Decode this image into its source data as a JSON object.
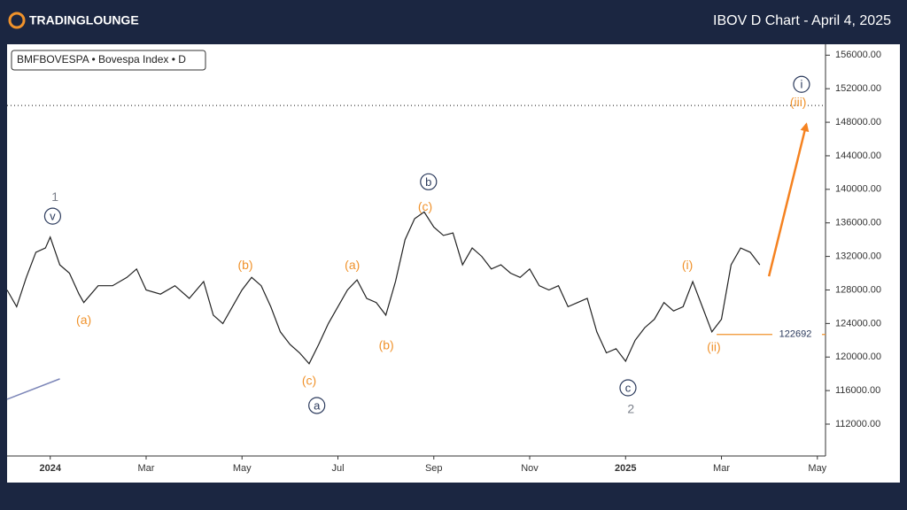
{
  "chart_data": {
    "type": "line",
    "brand": "TRADINGLOUNGE",
    "title": "IBOV D Chart - April 4, 2025",
    "legend_text": "BMFBOVESPA • Bovespa Index • D",
    "color": "#222222",
    "xlim": [
      -0.9,
      16.17
    ],
    "ylim": [
      108200,
      157300
    ],
    "xticks": [
      {
        "value": 0,
        "label": "2024"
      },
      {
        "value": 2,
        "label": "Mar"
      },
      {
        "value": 4,
        "label": "May"
      },
      {
        "value": 6,
        "label": "Jul"
      },
      {
        "value": 8,
        "label": "Sep"
      },
      {
        "value": 10,
        "label": "Nov"
      },
      {
        "value": 12,
        "label": "2025"
      },
      {
        "value": 14,
        "label": "Mar"
      },
      {
        "value": 16,
        "label": "May"
      }
    ],
    "yticks": [
      {
        "value": 156000,
        "label": "156000.00"
      },
      {
        "value": 152000,
        "label": "152000.00"
      },
      {
        "value": 148000,
        "label": "148000.00"
      },
      {
        "value": 144000,
        "label": "144000.00"
      },
      {
        "value": 140000,
        "label": "140000.00"
      },
      {
        "value": 136000,
        "label": "136000.00"
      },
      {
        "value": 132000,
        "label": "132000.00"
      },
      {
        "value": 128000,
        "label": "128000.00"
      },
      {
        "value": 124000,
        "label": "124000.00"
      },
      {
        "value": 120000,
        "label": "120000.00"
      },
      {
        "value": 116000,
        "label": "116000.00"
      },
      {
        "value": 112000,
        "label": "112000.00"
      }
    ],
    "x": [
      -0.9,
      -0.7,
      -0.5,
      -0.3,
      -0.1,
      0,
      0.2,
      0.4,
      0.6,
      0.7,
      1.0,
      1.3,
      1.6,
      1.8,
      2.0,
      2.3,
      2.6,
      2.9,
      3.2,
      3.4,
      3.6,
      3.8,
      4.0,
      4.2,
      4.4,
      4.6,
      4.8,
      5.0,
      5.2,
      5.4,
      5.6,
      5.8,
      6.0,
      6.2,
      6.4,
      6.6,
      6.8,
      7.0,
      7.2,
      7.4,
      7.6,
      7.8,
      8.0,
      8.2,
      8.4,
      8.6,
      8.8,
      9.0,
      9.2,
      9.4,
      9.6,
      9.8,
      10.0,
      10.2,
      10.4,
      10.6,
      10.8,
      11.0,
      11.2,
      11.4,
      11.6,
      11.8,
      12.0,
      12.2,
      12.4,
      12.6,
      12.8,
      13.0,
      13.2,
      13.4,
      13.6,
      13.8,
      14.0,
      14.2,
      14.4,
      14.6,
      14.8
    ],
    "values": [
      128000,
      126000,
      129500,
      132500,
      133000,
      134300,
      131000,
      130000,
      127500,
      126500,
      128500,
      128500,
      129500,
      130500,
      128000,
      127500,
      128500,
      127000,
      129000,
      125000,
      124000,
      126000,
      128000,
      129500,
      128500,
      126000,
      123000,
      121500,
      120500,
      119200,
      121500,
      124000,
      126000,
      128000,
      129200,
      127000,
      126500,
      125000,
      129000,
      134000,
      136500,
      137300,
      135500,
      134500,
      134800,
      131000,
      133000,
      132000,
      130500,
      131000,
      130000,
      129500,
      130500,
      128500,
      128000,
      128500,
      126000,
      126500,
      127000,
      123000,
      120500,
      121000,
      119500,
      122000,
      123500,
      124500,
      126500,
      125500,
      126000,
      129000,
      126000,
      123000,
      124500,
      131000,
      133000,
      132500,
      131000
    ],
    "annotations": [
      {
        "text": "1",
        "x": 0.1,
        "y": 139100,
        "color": "#7a7f8a"
      },
      {
        "text": "v",
        "x": 0.05,
        "y": 136800,
        "color": "#2b3a5c",
        "circled": true
      },
      {
        "text": "(a)",
        "x": 0.7,
        "y": 124450,
        "color": "#f0922b"
      },
      {
        "text": "(b)",
        "x": 4.07,
        "y": 131000,
        "color": "#f0922b"
      },
      {
        "text": "(c)",
        "x": 5.4,
        "y": 117180,
        "color": "#f0922b"
      },
      {
        "text": "a",
        "x": 5.56,
        "y": 114220,
        "color": "#2b3a5c",
        "circled": true
      },
      {
        "text": "(a)",
        "x": 6.3,
        "y": 131000,
        "color": "#f0922b"
      },
      {
        "text": "(b)",
        "x": 7.01,
        "y": 121400,
        "color": "#f0922b"
      },
      {
        "text": "(c)",
        "x": 7.82,
        "y": 137960,
        "color": "#f0922b"
      },
      {
        "text": "b",
        "x": 7.89,
        "y": 140900,
        "color": "#2b3a5c",
        "circled": true
      },
      {
        "text": "c",
        "x": 12.05,
        "y": 116330,
        "color": "#2b3a5c",
        "circled": true
      },
      {
        "text": "2",
        "x": 12.11,
        "y": 113800,
        "color": "#7a7f8a"
      },
      {
        "text": "(i)",
        "x": 13.29,
        "y": 131000,
        "color": "#f0922b"
      },
      {
        "text": "(ii)",
        "x": 13.84,
        "y": 121190,
        "color": "#f0922b"
      },
      {
        "text": "(iii)",
        "x": 15.6,
        "y": 150400,
        "color": "#f0922b"
      },
      {
        "text": "i",
        "x": 15.67,
        "y": 152520,
        "color": "#2b3a5c",
        "circled": true
      }
    ],
    "level": {
      "value": 122692,
      "x_start": 13.9,
      "color": "#f0922b"
    },
    "dotted_level": 150000,
    "arrow": {
      "x": [
        14.99,
        15.77
      ],
      "y": [
        129630,
        147770
      ],
      "color": "#f58220"
    },
    "trend_line": {
      "x": [
        -0.9,
        0.2
      ],
      "y": [
        114960,
        117400
      ],
      "color": "#7c86b8"
    }
  }
}
